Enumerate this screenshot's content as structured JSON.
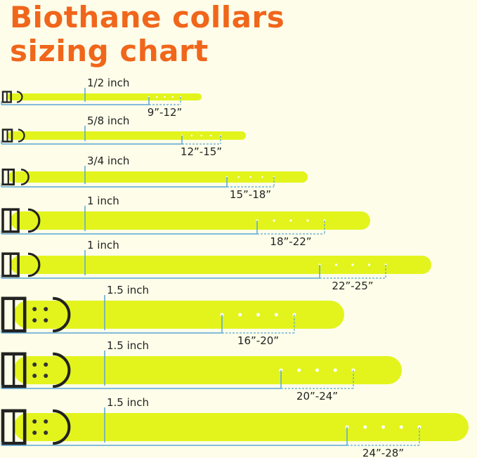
{
  "header": {
    "title_lines": [
      "Biothane collars",
      "sizing chart"
    ]
  },
  "collars": [
    {
      "width": "1/2 inch",
      "range": "9”-12”"
    },
    {
      "width": "5/8 inch",
      "range": "12”-15”"
    },
    {
      "width": "3/4 inch",
      "range": "15”-18”"
    },
    {
      "width": "1 inch",
      "range": "18”-22”"
    },
    {
      "width": "1 inch",
      "range": "22”-25”"
    },
    {
      "width": "1.5 inch",
      "range": "16”-20”"
    },
    {
      "width": "1.5 inch",
      "range": "20”-24”"
    },
    {
      "width": "1.5 inch",
      "range": "24”-28”"
    }
  ]
}
